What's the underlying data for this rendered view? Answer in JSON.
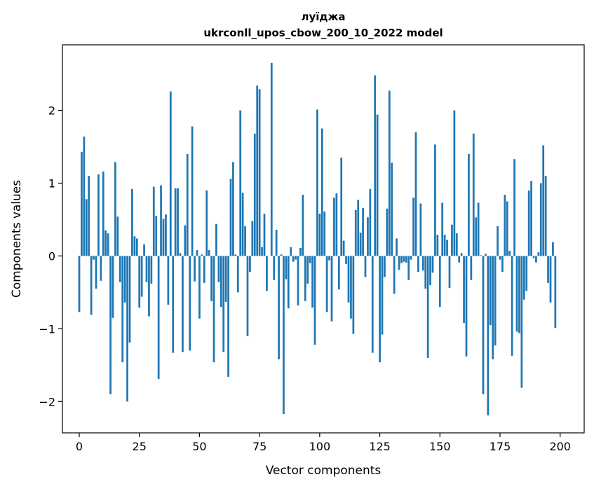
{
  "chart_data": {
    "type": "bar",
    "title_line1": "луїджа",
    "title_line2": "ukrconll_upos_cbow_200_10_2022 model",
    "xlabel": "Vector components",
    "ylabel": "Components values",
    "xlim": [
      -7,
      210
    ],
    "ylim": [
      -2.43,
      2.9
    ],
    "grid": false,
    "bar_color": "#1f77b4",
    "x_ticks": [
      0,
      25,
      50,
      75,
      100,
      125,
      150,
      175,
      200
    ],
    "x_tick_labels": [
      "0",
      "25",
      "50",
      "75",
      "100",
      "125",
      "150",
      "175",
      "200"
    ],
    "y_ticks": [
      2,
      1,
      0,
      -1,
      -2
    ],
    "y_tick_labels": [
      "2",
      "1",
      "0",
      "−1",
      "−2"
    ],
    "values": [
      -0.77,
      1.43,
      1.64,
      0.78,
      1.1,
      -0.81,
      -0.05,
      -0.45,
      1.12,
      -0.34,
      1.16,
      0.35,
      0.31,
      -1.9,
      -0.85,
      1.29,
      0.54,
      -0.36,
      -1.46,
      -0.64,
      -2.0,
      -1.19,
      0.92,
      0.27,
      0.24,
      -0.71,
      -0.56,
      0.16,
      -0.36,
      -0.83,
      -0.38,
      0.95,
      0.55,
      -1.69,
      0.97,
      0.51,
      0.57,
      -0.67,
      2.26,
      -1.33,
      0.93,
      0.93,
      0.04,
      -1.32,
      0.42,
      1.4,
      -1.3,
      1.78,
      -0.35,
      0.08,
      -0.86,
      0.02,
      -0.37,
      0.9,
      0.08,
      -0.62,
      -1.46,
      0.44,
      -0.36,
      -0.7,
      -1.32,
      -0.63,
      -1.66,
      1.06,
      1.29,
      0.02,
      -0.5,
      2.0,
      0.87,
      0.41,
      -1.1,
      -0.22,
      0.48,
      1.68,
      2.34,
      2.29,
      0.12,
      0.58,
      -0.48,
      0.0,
      2.65,
      -0.33,
      0.36,
      -1.42,
      0.02,
      -2.17,
      -0.32,
      -0.72,
      0.12,
      -0.08,
      -0.05,
      -0.68,
      0.11,
      0.84,
      -0.62,
      -0.38,
      -0.1,
      -0.71,
      -1.22,
      2.01,
      0.58,
      1.75,
      0.61,
      -0.77,
      -0.06,
      -0.9,
      0.8,
      0.86,
      -0.46,
      1.35,
      0.21,
      -0.11,
      -0.64,
      -0.86,
      -1.07,
      0.63,
      0.77,
      0.32,
      0.66,
      -0.29,
      0.53,
      0.92,
      -1.33,
      2.48,
      1.94,
      -1.46,
      -1.08,
      -0.29,
      0.65,
      2.27,
      1.28,
      -0.52,
      0.24,
      -0.19,
      -0.1,
      -0.08,
      -0.09,
      -0.33,
      -0.05,
      0.8,
      1.7,
      -0.22,
      0.72,
      -0.2,
      -0.45,
      -1.4,
      -0.4,
      -0.23,
      1.53,
      0.29,
      -0.7,
      0.73,
      0.29,
      0.22,
      -0.44,
      0.43,
      2.0,
      0.31,
      -0.09,
      0.04,
      -0.92,
      -1.38,
      1.4,
      -0.33,
      1.68,
      0.53,
      0.73,
      0.01,
      -1.9,
      0.03,
      -2.19,
      -0.95,
      -1.42,
      -1.23,
      0.41,
      -0.05,
      -0.22,
      0.84,
      0.75,
      0.07,
      -1.37,
      1.33,
      -1.04,
      -1.06,
      -1.81,
      -0.6,
      -0.48,
      0.9,
      1.03,
      -0.03,
      -0.09,
      0.05,
      1.0,
      1.52,
      1.1,
      -0.37,
      -0.64,
      0.19,
      -0.99,
      0.0
    ]
  }
}
